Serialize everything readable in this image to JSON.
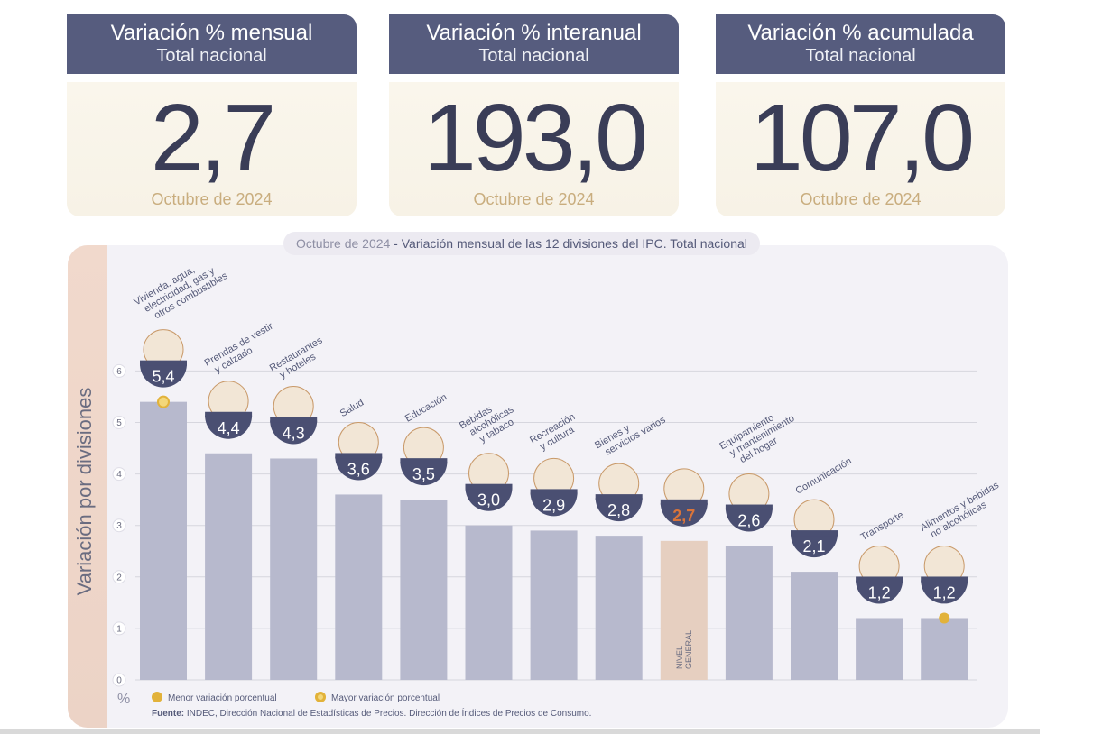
{
  "kpis": [
    {
      "title": "Variación % mensual",
      "subtitle": "Total nacional",
      "value": "2,7",
      "date": "Octubre de 2024"
    },
    {
      "title": "Variación % interanual",
      "subtitle": "Total nacional",
      "value": "193,0",
      "date": "Octubre de 2024"
    },
    {
      "title": "Variación % acumulada",
      "subtitle": "Total nacional",
      "value": "107,0",
      "date": "Octubre de 2024"
    }
  ],
  "panel": {
    "title_date": "Octubre de 2024",
    "title_rest": " - Variación mensual de las 12 divisiones del IPC. Total nacional"
  },
  "legend": {
    "min_label": "Menor variación porcentual",
    "max_label": "Mayor variación porcentual",
    "percent_symbol": "%"
  },
  "source": {
    "label": "Fuente:",
    "text": " INDEC, Dirección Nacional de Estadísticas de Precios. Dirección de Índices de Precios de Consumo."
  },
  "colors": {
    "header": "#565c7e",
    "bar": "#b7b9cd",
    "bar_highlight": "#e6cfc0",
    "badge": "#4a4f72",
    "value_highlight": "#d9743a",
    "dot": "#e2b23a"
  },
  "chart_data": {
    "type": "bar",
    "title": "Variación mensual de las 12 divisiones del IPC. Total nacional",
    "ylabel": "Variación por divisiones",
    "ylim": [
      0,
      6
    ],
    "yticks": [
      0,
      1,
      2,
      3,
      4,
      5,
      6
    ],
    "categories": [
      "Vivienda, agua, electricidad, gas y otros combustibles",
      "Prendas de vestir y calzado",
      "Restaurantes y hoteles",
      "Salud",
      "Educación",
      "Bebidas alcohólicas y tabaco",
      "Recreación y cultura",
      "Bienes y servicios varios",
      "Nivel general",
      "Equipamiento y mantenimiento del hogar",
      "Comunicación",
      "Transporte",
      "Alimentos y bebidas no alcohólicas"
    ],
    "category_lines": [
      [
        "Vivienda, agua,",
        "electricidad, gas y",
        "otros combustibles"
      ],
      [
        "Prendas de vestir",
        "y calzado"
      ],
      [
        "Restaurantes",
        "y hoteles"
      ],
      [
        "Salud"
      ],
      [
        "Educación"
      ],
      [
        "Bebidas",
        "alcohólicas",
        "y tabaco"
      ],
      [
        "Recreación",
        "y cultura"
      ],
      [
        "Bienes y",
        "servicios varios"
      ],
      [],
      [
        "Equipamiento",
        "y mantenimiento",
        "del hogar"
      ],
      [
        "Comunicación"
      ],
      [
        "Transporte"
      ],
      [
        "Alimentos y bebidas",
        "no alcohólicas"
      ]
    ],
    "values": [
      5.4,
      4.4,
      4.3,
      3.6,
      3.5,
      3.0,
      2.9,
      2.8,
      2.7,
      2.6,
      2.1,
      1.2,
      1.2
    ],
    "value_labels": [
      "5,4",
      "4,4",
      "4,3",
      "3,6",
      "3,5",
      "3,0",
      "2,9",
      "2,8",
      "2,7",
      "2,6",
      "2,1",
      "1,2",
      "1,2"
    ],
    "highlight_index": 8,
    "highlight_bar_label": [
      "NIVEL",
      "GENERAL"
    ],
    "max_marker_index": 0,
    "min_marker_index": 12,
    "icons": [
      "lightbulb-icon",
      "shirt-icon",
      "cutlery-icon",
      "first-aid-icon",
      "notebook-icon",
      "wine-bottle-icon",
      "beach-umbrella-icon",
      "comb-scissors-icon",
      "shopping-basket-icon",
      "appliance-icon",
      "smartphone-icon",
      "transit-card-icon",
      "groceries-icon"
    ]
  }
}
